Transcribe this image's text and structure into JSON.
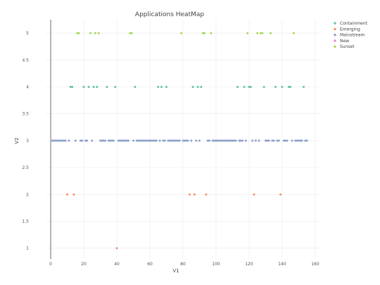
{
  "chart_data": {
    "type": "scatter",
    "title": "Applications HeatMap",
    "xlabel": "V1",
    "ylabel": "V2",
    "xlim": [
      -3,
      163
    ],
    "ylim": [
      0.8,
      5.25
    ],
    "x_ticks": [
      0,
      20,
      40,
      60,
      80,
      100,
      120,
      140,
      160
    ],
    "y_ticks": [
      1,
      1.5,
      2,
      2.5,
      3,
      3.5,
      4,
      4.5,
      5
    ],
    "grid": true,
    "legend_position": "top-right",
    "series": [
      {
        "name": "Containment",
        "color": "#66c2a5",
        "x": [
          12,
          13,
          20,
          23,
          26,
          28,
          34,
          39,
          51,
          65,
          67,
          70,
          86,
          89,
          91,
          113,
          117,
          120,
          121,
          129,
          136,
          140,
          144,
          145,
          153
        ],
        "y": [
          4,
          4,
          4,
          4,
          4,
          4,
          4,
          4,
          4,
          4,
          4,
          4,
          4,
          4,
          4,
          4,
          4,
          4,
          4,
          4,
          4,
          4,
          4,
          4,
          4
        ]
      },
      {
        "name": "Emerging",
        "color": "#fc8d62",
        "x": [
          10,
          14,
          84,
          87,
          94,
          123,
          139
        ],
        "y": [
          2,
          2,
          2,
          2,
          2,
          2,
          2
        ]
      },
      {
        "name": "Mainstream",
        "color": "#8da0cb",
        "x": [
          1,
          2,
          3,
          4,
          5,
          6,
          7,
          8,
          9,
          11,
          15,
          18,
          19,
          21,
          22,
          25,
          30,
          31,
          32,
          33,
          35,
          36,
          37,
          38,
          41,
          42,
          43,
          44,
          45,
          46,
          47,
          50,
          52,
          53,
          54,
          55,
          56,
          57,
          58,
          59,
          60,
          61,
          62,
          63,
          64,
          66,
          68,
          69,
          71,
          72,
          73,
          74,
          75,
          76,
          77,
          78,
          80,
          81,
          82,
          83,
          85,
          88,
          90,
          95,
          96,
          98,
          99,
          100,
          101,
          102,
          103,
          104,
          105,
          106,
          107,
          108,
          109,
          110,
          111,
          112,
          114,
          115,
          116,
          118,
          122,
          124,
          126,
          130,
          131,
          132,
          134,
          135,
          137,
          138,
          141,
          142,
          143,
          146,
          148,
          149,
          150,
          151,
          152,
          154,
          155
        ],
        "y": [
          3,
          3,
          3,
          3,
          3,
          3,
          3,
          3,
          3,
          3,
          3,
          3,
          3,
          3,
          3,
          3,
          3,
          3,
          3,
          3,
          3,
          3,
          3,
          3,
          3,
          3,
          3,
          3,
          3,
          3,
          3,
          3,
          3,
          3,
          3,
          3,
          3,
          3,
          3,
          3,
          3,
          3,
          3,
          3,
          3,
          3,
          3,
          3,
          3,
          3,
          3,
          3,
          3,
          3,
          3,
          3,
          3,
          3,
          3,
          3,
          3,
          3,
          3,
          3,
          3,
          3,
          3,
          3,
          3,
          3,
          3,
          3,
          3,
          3,
          3,
          3,
          3,
          3,
          3,
          3,
          3,
          3,
          3,
          3,
          3,
          3,
          3,
          3,
          3,
          3,
          3,
          3,
          3,
          3,
          3,
          3,
          3,
          3,
          3,
          3,
          3,
          3,
          3,
          3,
          3
        ]
      },
      {
        "name": "New",
        "color": "#e78ac3",
        "x": [
          40
        ],
        "y": [
          1
        ]
      },
      {
        "name": "Sunset",
        "color": "#a6d854",
        "x": [
          16,
          17,
          24,
          27,
          29,
          48,
          49,
          79,
          92,
          93,
          97,
          119,
          125,
          127,
          128,
          133,
          147
        ],
        "y": [
          5,
          5,
          5,
          5,
          5,
          5,
          5,
          5,
          5,
          5,
          5,
          5,
          5,
          5,
          5,
          5,
          5
        ]
      }
    ]
  }
}
